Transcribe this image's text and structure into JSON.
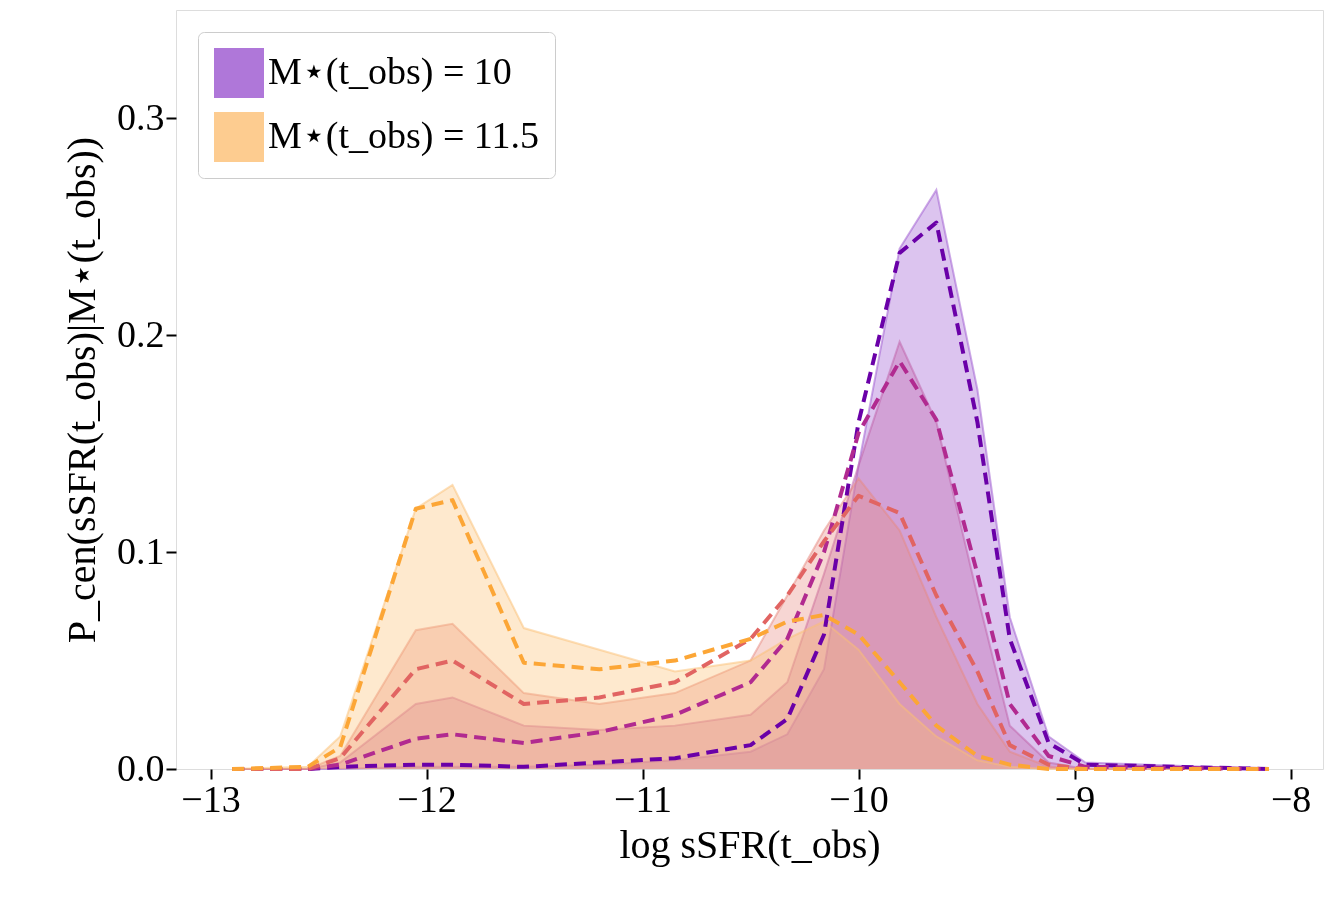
{
  "chart_data": {
    "type": "area",
    "xlabel": "log sSFR(t_obs)",
    "ylabel": "P_cen(sSFR(t_obs)|M⋆(t_obs))",
    "x": [
      -12.9,
      -12.55,
      -12.4,
      -12.05,
      -11.88,
      -11.55,
      -11.2,
      -10.85,
      -10.5,
      -10.33,
      -10.16,
      -10.0,
      -9.81,
      -9.64,
      -9.45,
      -9.3,
      -9.12,
      -8.95,
      -8.1
    ],
    "series": [
      {
        "name": "M⋆(t_obs) = 10",
        "color": "#9b55d0",
        "values": [
          0,
          0,
          0,
          0.001,
          0.001,
          0.001,
          0.002,
          0.004,
          0.008,
          0.016,
          0.046,
          0.14,
          0.24,
          0.267,
          0.175,
          0.07,
          0.015,
          0.003,
          0
        ]
      },
      {
        "color": "#c060a8",
        "values": [
          0,
          0,
          0.003,
          0.03,
          0.033,
          0.02,
          0.018,
          0.02,
          0.025,
          0.04,
          0.09,
          0.14,
          0.197,
          0.16,
          0.08,
          0.02,
          0.003,
          0,
          0
        ]
      },
      {
        "color": "#e88a80",
        "values": [
          0,
          0,
          0.006,
          0.064,
          0.067,
          0.035,
          0.03,
          0.035,
          0.05,
          0.08,
          0.11,
          0.134,
          0.11,
          0.07,
          0.03,
          0.008,
          0.001,
          0,
          0
        ]
      },
      {
        "name": "M⋆(t_obs) = 11.5",
        "color": "#fcbf74",
        "values": [
          0,
          0.001,
          0.015,
          0.12,
          0.131,
          0.065,
          0.055,
          0.045,
          0.05,
          0.06,
          0.068,
          0.055,
          0.03,
          0.015,
          0.004,
          0.001,
          0,
          0,
          0
        ]
      },
      {
        "type": "line",
        "line_style": "dashed",
        "color": "#6a00a8",
        "values": [
          0,
          0,
          0.001,
          0.002,
          0.002,
          0.001,
          0.003,
          0.005,
          0.011,
          0.023,
          0.062,
          0.16,
          0.238,
          0.252,
          0.16,
          0.06,
          0.012,
          0.002,
          0
        ]
      },
      {
        "type": "line",
        "line_style": "dashed",
        "color": "#b12a90",
        "values": [
          0,
          0,
          0.002,
          0.014,
          0.016,
          0.012,
          0.017,
          0.025,
          0.04,
          0.06,
          0.1,
          0.155,
          0.188,
          0.161,
          0.09,
          0.03,
          0.006,
          0.001,
          0
        ]
      },
      {
        "type": "line",
        "line_style": "dashed",
        "color": "#e16462",
        "values": [
          0,
          0,
          0.005,
          0.046,
          0.05,
          0.03,
          0.033,
          0.04,
          0.06,
          0.08,
          0.105,
          0.126,
          0.118,
          0.08,
          0.045,
          0.011,
          0.002,
          0,
          0
        ]
      },
      {
        "type": "line",
        "line_style": "dashed",
        "color": "#fca636",
        "values": [
          0,
          0.001,
          0.01,
          0.12,
          0.124,
          0.049,
          0.046,
          0.05,
          0.06,
          0.068,
          0.071,
          0.062,
          0.04,
          0.02,
          0.006,
          0.002,
          0,
          0,
          0
        ]
      }
    ],
    "xlim": [
      -13.16,
      -7.85
    ],
    "xticks": [
      {
        "value": -13,
        "label": "−13"
      },
      {
        "value": -12,
        "label": "−12"
      },
      {
        "value": -11,
        "label": "−11"
      },
      {
        "value": -10,
        "label": "−10"
      },
      {
        "value": -9,
        "label": "−9"
      },
      {
        "value": -8,
        "label": "−8"
      }
    ],
    "ylim": [
      0,
      0.35
    ],
    "yticks": [
      {
        "value": 0,
        "label": "0.0"
      },
      {
        "value": 0.1,
        "label": "0.1"
      },
      {
        "value": 0.2,
        "label": "0.2"
      },
      {
        "value": 0.3,
        "label": "0.3"
      }
    ],
    "grid": false,
    "legend": "top left"
  }
}
